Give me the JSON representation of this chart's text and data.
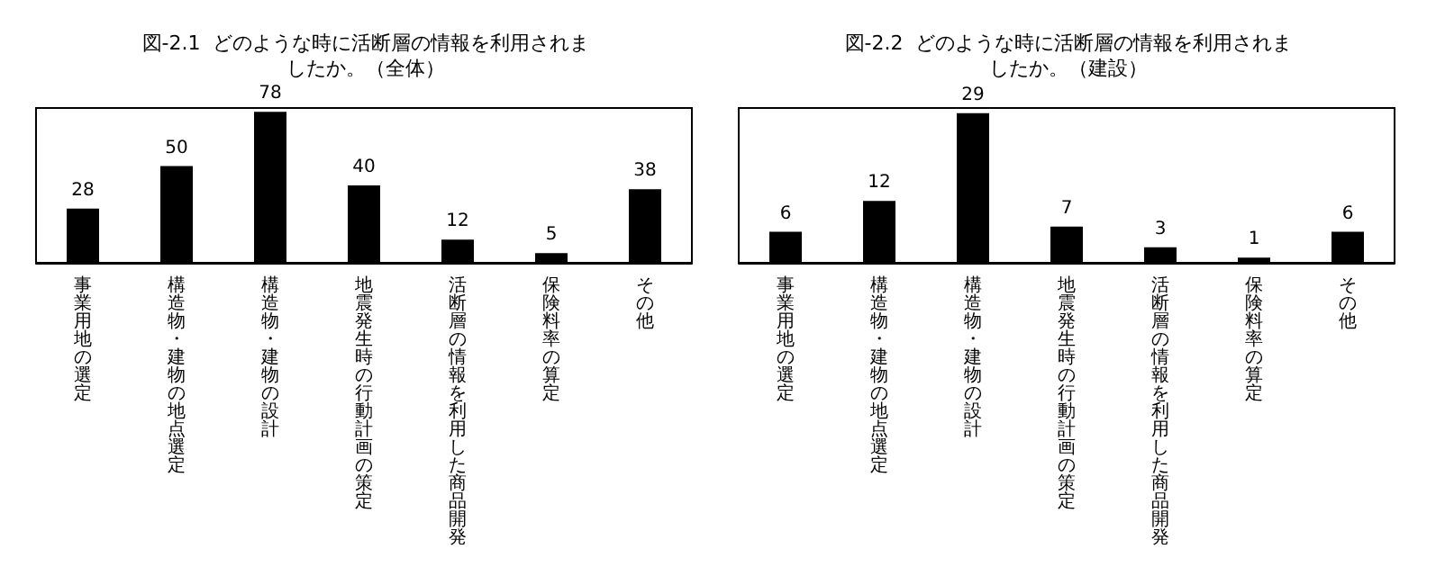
{
  "chart_data": [
    {
      "type": "bar",
      "title": "図-2.1  どのような時に活断層の情報を利用されましたか。（全体）",
      "categories": [
        "事業用地の選定",
        "構造物・建物の地点選定",
        "構造物・建物の設計",
        "地震発生時の行動計画の策定",
        "活断層の情報を利用した商品開発",
        "保険料率の算定",
        "その他"
      ],
      "values": [
        28,
        50,
        78,
        40,
        12,
        5,
        38
      ],
      "color": "#000000",
      "data_labels": true,
      "grid": false
    },
    {
      "type": "bar",
      "title": "図-2.2  どのような時に活断層の情報を利用されましたか。（建設）",
      "categories": [
        "事業用地の選定",
        "構造物・建物の地点選定",
        "構造物・建物の設計",
        "地震発生時の行動計画の策定",
        "活断層の情報を利用した商品開発",
        "保険料率の算定",
        "その他"
      ],
      "values": [
        6,
        12,
        29,
        7,
        3,
        1,
        6
      ],
      "color": "#000000",
      "data_labels": true,
      "grid": false
    }
  ]
}
